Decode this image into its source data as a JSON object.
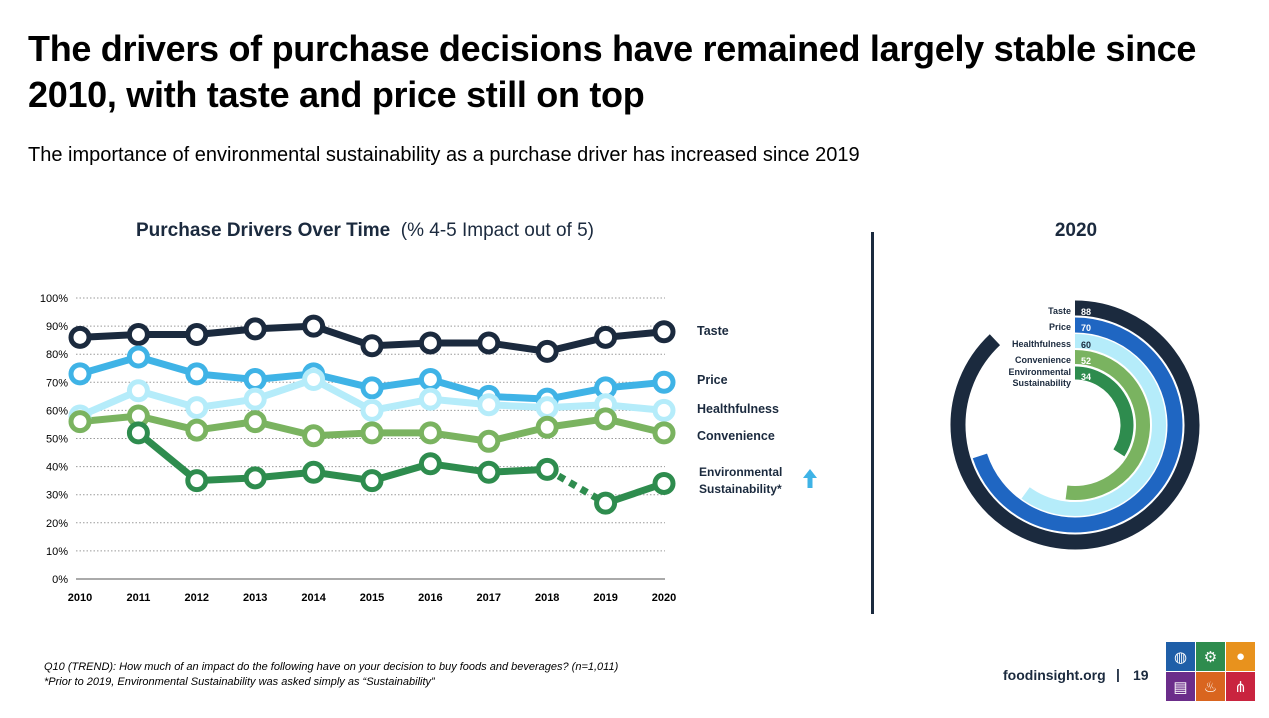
{
  "header": {
    "title": "The drivers of purchase decisions have remained largely stable since 2010, with taste and price still on top",
    "subtitle": "The importance of environmental sustainability as a purchase driver has increased since 2019"
  },
  "line_chart": {
    "title_bold": "Purchase Drivers Over Time",
    "title_rest": "(% 4-5 Impact out of 5)"
  },
  "donut_chart": {
    "title": "2020"
  },
  "colors": {
    "taste": "#1b2a3e",
    "price": "#3fb3e6",
    "healthfulness": "#b5ecfa",
    "convenience": "#7ab360",
    "environmental": "#2e8c4e",
    "donut_price": "#1f66c2",
    "arrow": "#3fb3e6"
  },
  "chart_data": [
    {
      "type": "line",
      "title": "Purchase Drivers Over Time",
      "ylabel": "% 4-5 Impact out of 5",
      "ylim": [
        0,
        100
      ],
      "y_ticks": [
        "0%",
        "10%",
        "20%",
        "30%",
        "40%",
        "50%",
        "60%",
        "70%",
        "80%",
        "90%",
        "100%"
      ],
      "x": [
        "2010",
        "2011",
        "2012",
        "2013",
        "2014",
        "2015",
        "2016",
        "2017",
        "2018",
        "2019",
        "2020"
      ],
      "grid": true,
      "series": [
        {
          "name": "Taste",
          "values": [
            86,
            87,
            87,
            89,
            90,
            83,
            84,
            84,
            81,
            86,
            88
          ]
        },
        {
          "name": "Price",
          "values": [
            73,
            79,
            73,
            71,
            73,
            68,
            71,
            65,
            64,
            68,
            70
          ]
        },
        {
          "name": "Healthfulness",
          "values": [
            58,
            67,
            61,
            64,
            71,
            60,
            64,
            62,
            61,
            62,
            60
          ]
        },
        {
          "name": "Convenience",
          "values": [
            56,
            58,
            53,
            56,
            51,
            52,
            52,
            49,
            54,
            57,
            52
          ]
        },
        {
          "name": "Environmental Sustainability*",
          "values": [
            null,
            52,
            35,
            36,
            38,
            35,
            41,
            38,
            39,
            27,
            34
          ]
        }
      ],
      "legend_labels": [
        "Taste",
        "Price",
        "Healthfulness",
        "Convenience"
      ],
      "env_label_lines": [
        "Environmental",
        "Sustainability*"
      ],
      "annotation": "increase arrow next to Environmental Sustainability*"
    },
    {
      "type": "radial-bar",
      "title": "2020",
      "categories": [
        "Taste",
        "Price",
        "Healthfulness",
        "Convenience",
        "Environmental Sustainability"
      ],
      "label_lines": [
        [
          "Taste"
        ],
        [
          "Price"
        ],
        [
          "Healthfulness"
        ],
        [
          "Convenience"
        ],
        [
          "Environmental",
          "Sustainability"
        ]
      ],
      "values": [
        88,
        70,
        60,
        52,
        34
      ]
    }
  ],
  "footer": {
    "note_line1": "Q10 (TREND): How much of an impact do the following have on your decision to buy foods and beverages? (n=1,011)",
    "note_line2": "*Prior to 2019, Environmental Sustainability was asked simply as “Sustainability”",
    "site": "foodinsight.org",
    "separator": "|",
    "page": "19"
  },
  "logo": {
    "tiles": [
      {
        "color": "#1f5fa8",
        "icon": "globe-icon",
        "glyph": "◍"
      },
      {
        "color": "#2e8c4e",
        "icon": "tractor-icon",
        "glyph": "⚙"
      },
      {
        "color": "#e8921d",
        "icon": "food-icon",
        "glyph": "●"
      },
      {
        "color": "#6b2d8a",
        "icon": "cart-icon",
        "glyph": "▤"
      },
      {
        "color": "#d9651f",
        "icon": "pot-icon",
        "glyph": "♨"
      },
      {
        "color": "#c9243f",
        "icon": "utensils-icon",
        "glyph": "⋔"
      }
    ]
  }
}
